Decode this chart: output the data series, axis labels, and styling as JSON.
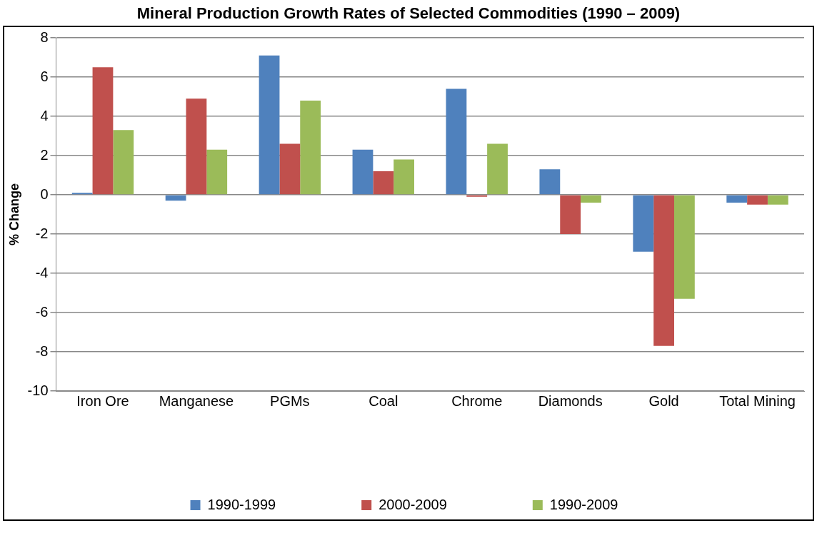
{
  "chart_data": {
    "type": "bar",
    "title": "Mineral Production Growth Rates of Selected Commodities (1990 – 2009)",
    "ylabel": "% Change",
    "categories": [
      "Iron Ore",
      "Manganese",
      "PGMs",
      "Coal",
      "Chrome",
      "Diamonds",
      "Gold",
      "Total Mining"
    ],
    "series": [
      {
        "name": "1990-1999",
        "color": "#4f81bd",
        "values": [
          0.1,
          -0.3,
          7.1,
          2.3,
          5.4,
          1.3,
          -2.9,
          -0.4
        ]
      },
      {
        "name": "2000-2009",
        "color": "#c0504d",
        "values": [
          6.5,
          4.9,
          2.6,
          1.2,
          -0.1,
          -2.0,
          -7.7,
          -0.5
        ]
      },
      {
        "name": "1990-2009",
        "color": "#9bbb59",
        "values": [
          3.3,
          2.3,
          4.8,
          1.8,
          2.6,
          -0.4,
          -5.3,
          -0.5
        ]
      }
    ],
    "ylim": [
      -10,
      8
    ],
    "yticks": [
      -10,
      -8,
      -6,
      -4,
      -2,
      0,
      2,
      4,
      6,
      8
    ],
    "grid": "y",
    "legend": "bottom"
  }
}
